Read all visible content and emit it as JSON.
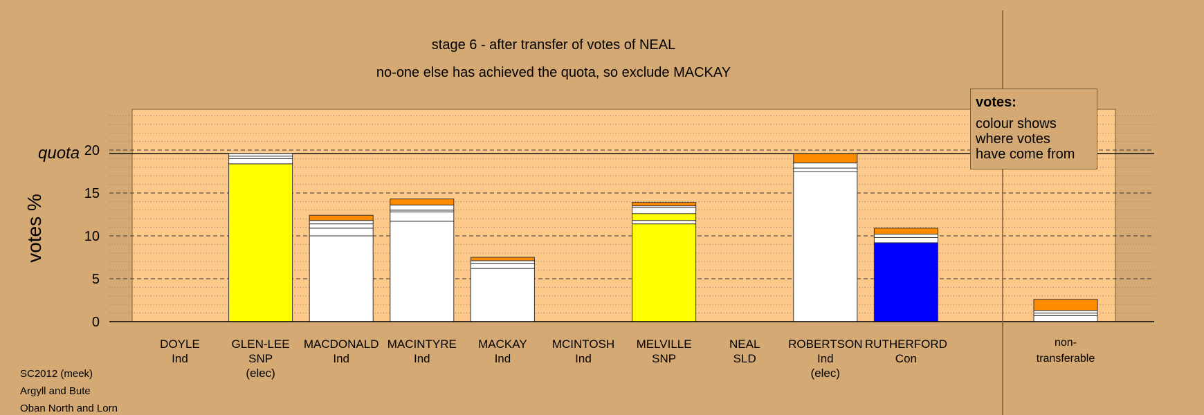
{
  "title_line1": "stage 6 - after transfer of votes of NEAL",
  "title_line2": "no-one else has achieved the quota, so exclude MACKAY",
  "legend": {
    "heading": "votes:",
    "line1": "colour shows",
    "line2": "where votes",
    "line3": "have come from"
  },
  "footer": {
    "line1": "SC2012 (meek)",
    "line2": "Argyll and Bute",
    "line3": "Oban North and Lorn"
  },
  "colors": {
    "background": "#d4a974",
    "plot_area": "#fdc98a",
    "snp": "#ffff00",
    "ind": "#ffffff",
    "con": "#0000ff",
    "sld": "#ff8c00"
  },
  "chart_data": {
    "type": "bar",
    "stacked": true,
    "ylabel": "votes %",
    "ylim": [
      0,
      25
    ],
    "yticks": [
      0,
      5,
      10,
      15,
      20
    ],
    "quota": 19.6,
    "quota_label": "quota",
    "grid": true,
    "legend_placement": "top-right",
    "candidates": [
      {
        "name": "DOYLE",
        "party": "Ind",
        "status": "",
        "segments": []
      },
      {
        "name": "GLEN-LEE",
        "party": "SNP",
        "status": "(elec)",
        "segments": [
          {
            "from": "SNP",
            "color": "#ffff00",
            "value": 18.4
          },
          {
            "from": "Ind",
            "color": "#ffffff",
            "value": 0.6
          },
          {
            "from": "Ind",
            "color": "#ffffff",
            "value": 0.3
          },
          {
            "from": "Ind",
            "color": "#ffffff",
            "value": 0.3
          }
        ]
      },
      {
        "name": "MACDONALD",
        "party": "Ind",
        "status": "",
        "segments": [
          {
            "from": "Ind",
            "color": "#ffffff",
            "value": 10.0
          },
          {
            "from": "Ind",
            "color": "#ffffff",
            "value": 0.9
          },
          {
            "from": "Ind",
            "color": "#ffffff",
            "value": 0.5
          },
          {
            "from": "Ind",
            "color": "#ffffff",
            "value": 0.4
          },
          {
            "from": "SLD",
            "color": "#ff8c00",
            "value": 0.6
          }
        ]
      },
      {
        "name": "MACINTYRE",
        "party": "Ind",
        "status": "",
        "segments": [
          {
            "from": "Ind",
            "color": "#ffffff",
            "value": 11.7
          },
          {
            "from": "Ind",
            "color": "#ffffff",
            "value": 1.1
          },
          {
            "from": "Ind",
            "color": "#ffffff",
            "value": 0.2
          },
          {
            "from": "Ind",
            "color": "#ffffff",
            "value": 0.6
          },
          {
            "from": "SLD",
            "color": "#ff8c00",
            "value": 0.7
          }
        ]
      },
      {
        "name": "MACKAY",
        "party": "Ind",
        "status": "",
        "segments": [
          {
            "from": "Ind",
            "color": "#ffffff",
            "value": 6.2
          },
          {
            "from": "Ind",
            "color": "#ffffff",
            "value": 0.6
          },
          {
            "from": "Ind",
            "color": "#ffffff",
            "value": 0.3
          },
          {
            "from": "SLD",
            "color": "#ff8c00",
            "value": 0.4
          }
        ]
      },
      {
        "name": "MCINTOSH",
        "party": "Ind",
        "status": "",
        "segments": []
      },
      {
        "name": "MELVILLE",
        "party": "SNP",
        "status": "",
        "segments": [
          {
            "from": "SNP",
            "color": "#ffff00",
            "value": 11.4
          },
          {
            "from": "Ind",
            "color": "#ffffff",
            "value": 0.4
          },
          {
            "from": "SNP",
            "color": "#ffff00",
            "value": 0.8
          },
          {
            "from": "Ind",
            "color": "#ffffff",
            "value": 0.7
          },
          {
            "from": "Ind",
            "color": "#ffffff",
            "value": 0.2
          },
          {
            "from": "SLD",
            "color": "#ff8c00",
            "value": 0.4
          }
        ]
      },
      {
        "name": "NEAL",
        "party": "SLD",
        "status": "",
        "segments": []
      },
      {
        "name": "ROBERTSON",
        "party": "Ind",
        "status": "(elec)",
        "segments": [
          {
            "from": "Ind",
            "color": "#ffffff",
            "value": 17.5
          },
          {
            "from": "Ind",
            "color": "#ffffff",
            "value": 0.4
          },
          {
            "from": "Ind",
            "color": "#ffffff",
            "value": 0.6
          },
          {
            "from": "SLD",
            "color": "#ff8c00",
            "value": 1.1
          }
        ]
      },
      {
        "name": "RUTHERFORD",
        "party": "Con",
        "status": "",
        "segments": [
          {
            "from": "Con",
            "color": "#0000ff",
            "value": 9.2
          },
          {
            "from": "Ind",
            "color": "#ffffff",
            "value": 0.6
          },
          {
            "from": "Ind",
            "color": "#ffffff",
            "value": 0.4
          },
          {
            "from": "SLD",
            "color": "#ff8c00",
            "value": 0.7
          }
        ]
      }
    ],
    "nontransferable": {
      "label_line1": "non-",
      "label_line2": "transferable",
      "segments": [
        {
          "from": "Ind",
          "color": "#ffffff",
          "value": 0.7
        },
        {
          "from": "Ind",
          "color": "#ffffff",
          "value": 0.3
        },
        {
          "from": "Ind",
          "color": "#ffffff",
          "value": 0.3
        },
        {
          "from": "SLD",
          "color": "#ff8c00",
          "value": 1.3
        }
      ]
    }
  }
}
